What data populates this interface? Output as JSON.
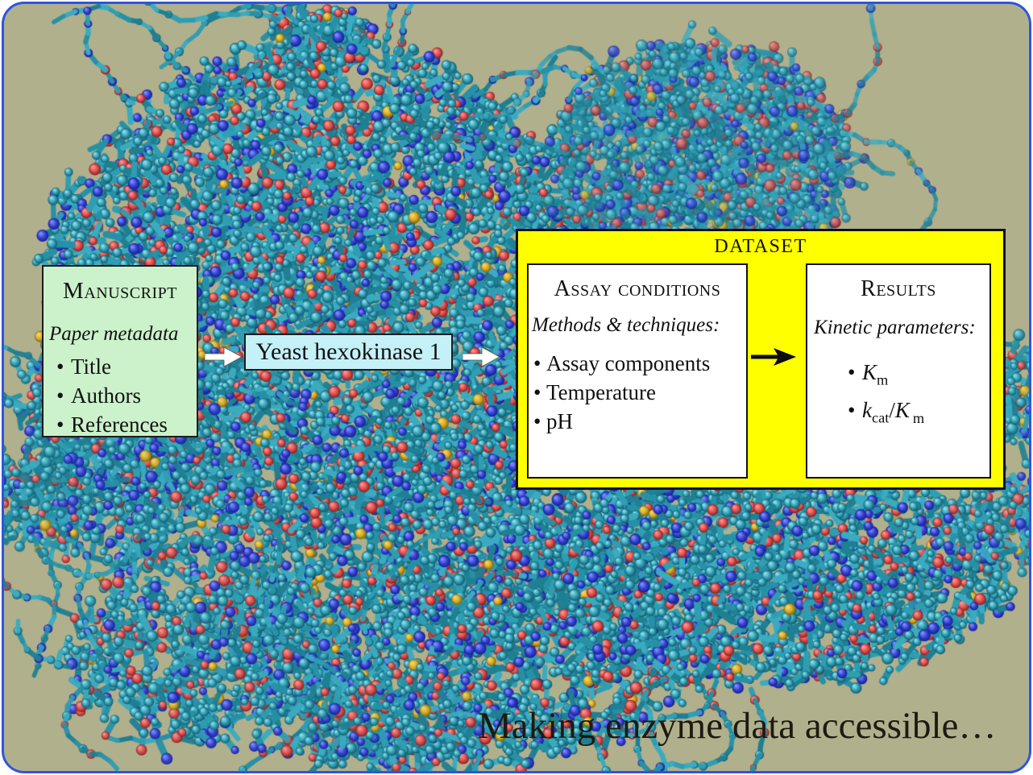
{
  "figure": {
    "background_color": "#b1b08c",
    "frame_color": "#2f55dd",
    "caption": "Making enzyme data accessible…"
  },
  "ui": {
    "bullet": "•"
  },
  "manuscript": {
    "title": "Manuscript",
    "subtitle": "Paper metadata",
    "items": [
      "Title",
      "Authors",
      "References"
    ],
    "bg_color": "#cbf2ca"
  },
  "enzyme": {
    "label": "Yeast hexokinase 1",
    "bg_color": "#c4f1f7"
  },
  "dataset": {
    "title": "DATASET",
    "bg_color": "#ffff00",
    "assay": {
      "title": "Assay conditions",
      "subtitle": "Methods & techniques:",
      "items": [
        "Assay components",
        "Temperature",
        "pH"
      ]
    },
    "results": {
      "title": "Results",
      "subtitle": "Kinetic parameters:",
      "items": [
        {
          "base": "K",
          "sub": "m"
        },
        {
          "base": "k",
          "sub": "cat",
          "sep": "/",
          "base2": "K",
          "sub2": "m"
        }
      ]
    }
  },
  "arrows": {
    "flow_color": "#ffffff",
    "flow_outline": "#55554a",
    "dataset_arrow_color": "#0d0d0d"
  },
  "molecule": {
    "bond_colors": [
      "#2691a6",
      "#2f9db2",
      "#3aabc0",
      "#1f7f93"
    ],
    "atoms": {
      "carbon": {
        "hi": "#8adbe7",
        "base": "#2f9db2",
        "lo": "#14566a"
      },
      "oxygen": {
        "hi": "#f59390",
        "base": "#e14b4a",
        "lo": "#7e201f"
      },
      "nitrogen": {
        "hi": "#7e8bf2",
        "base": "#3340d2",
        "lo": "#161e8e"
      },
      "sulfur": {
        "hi": "#f2d46e",
        "base": "#d9ab1f",
        "lo": "#7e620c"
      }
    }
  }
}
